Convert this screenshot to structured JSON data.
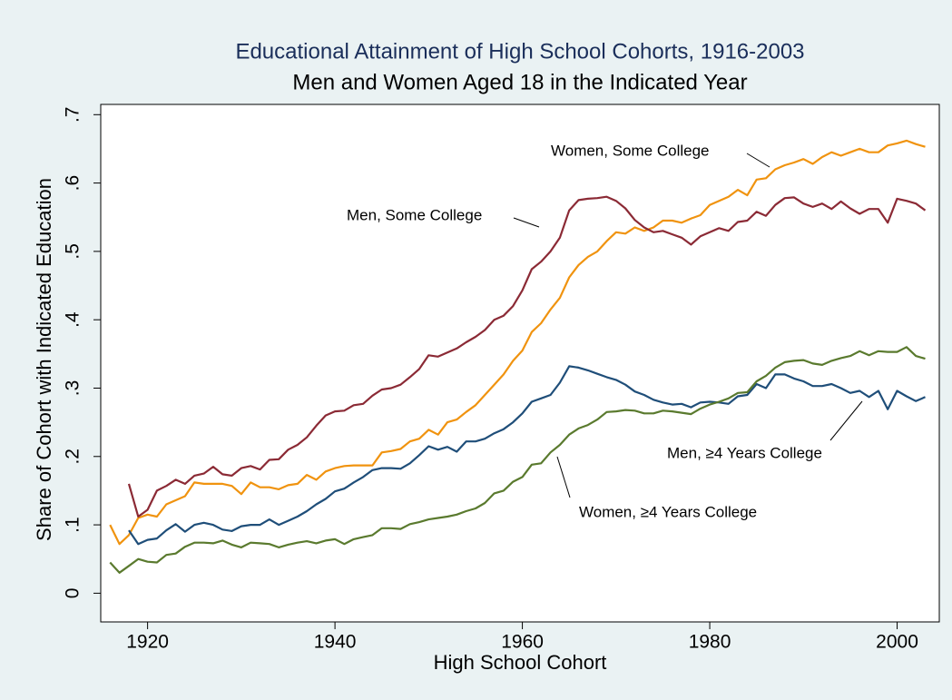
{
  "chart_data": {
    "type": "line",
    "title": "Educational Attainment of High School Cohorts, 1916-2003",
    "subtitle": "Men and Women Aged 18 in the Indicated Year",
    "x_label": "High School Cohort",
    "y_label": "Share of Cohort with Indicated Education",
    "x": [
      1916,
      1917,
      1918,
      1919,
      1920,
      1921,
      1922,
      1923,
      1924,
      1925,
      1926,
      1927,
      1928,
      1929,
      1930,
      1931,
      1932,
      1933,
      1934,
      1935,
      1936,
      1937,
      1938,
      1939,
      1940,
      1941,
      1942,
      1943,
      1944,
      1945,
      1946,
      1947,
      1948,
      1949,
      1950,
      1951,
      1952,
      1953,
      1954,
      1955,
      1956,
      1957,
      1958,
      1959,
      1960,
      1961,
      1962,
      1963,
      1964,
      1965,
      1966,
      1967,
      1968,
      1969,
      1970,
      1971,
      1972,
      1973,
      1974,
      1975,
      1976,
      1977,
      1978,
      1979,
      1980,
      1981,
      1982,
      1983,
      1984,
      1985,
      1986,
      1987,
      1988,
      1989,
      1990,
      1991,
      1992,
      1993,
      1994,
      1995,
      1996,
      1997,
      1998,
      1999,
      2000,
      2001,
      2002,
      2003
    ],
    "series": [
      {
        "name": "Women, Some College",
        "color": "#f0930f",
        "values": [
          0.1,
          0.072,
          0.085,
          0.11,
          0.115,
          0.112,
          0.13,
          0.136,
          0.142,
          0.162,
          0.16,
          0.16,
          0.16,
          0.157,
          0.145,
          0.162,
          0.155,
          0.155,
          0.152,
          0.158,
          0.16,
          0.173,
          0.166,
          0.178,
          0.183,
          0.186,
          0.187,
          0.187,
          0.187,
          0.206,
          0.208,
          0.211,
          0.222,
          0.226,
          0.239,
          0.232,
          0.25,
          0.254,
          0.265,
          0.275,
          0.29,
          0.305,
          0.32,
          0.34,
          0.355,
          0.382,
          0.395,
          0.415,
          0.432,
          0.462,
          0.48,
          0.492,
          0.5,
          0.515,
          0.528,
          0.526,
          0.535,
          0.53,
          0.535,
          0.545,
          0.545,
          0.542,
          0.548,
          0.553,
          0.568,
          0.574,
          0.58,
          0.59,
          0.582,
          0.605,
          0.607,
          0.62,
          0.626,
          0.63,
          0.635,
          0.628,
          0.638,
          0.645,
          0.64,
          0.645,
          0.65,
          0.645,
          0.645,
          0.655,
          0.658,
          0.662,
          0.657,
          0.653
        ]
      },
      {
        "name": "Men, Some College",
        "color": "#8b2a35",
        "values": [
          null,
          null,
          0.16,
          0.112,
          0.122,
          0.15,
          0.157,
          0.166,
          0.16,
          0.172,
          0.175,
          0.185,
          0.174,
          0.172,
          0.183,
          0.186,
          0.181,
          0.195,
          0.196,
          0.21,
          0.217,
          0.228,
          0.245,
          0.26,
          0.266,
          0.267,
          0.275,
          0.277,
          0.289,
          0.298,
          0.3,
          0.305,
          0.316,
          0.328,
          0.348,
          0.346,
          0.352,
          0.358,
          0.367,
          0.375,
          0.385,
          0.4,
          0.406,
          0.42,
          0.443,
          0.474,
          0.485,
          0.5,
          0.52,
          0.56,
          0.575,
          0.577,
          0.578,
          0.58,
          0.574,
          0.563,
          0.546,
          0.535,
          0.528,
          0.53,
          0.525,
          0.52,
          0.51,
          0.522,
          0.528,
          0.534,
          0.53,
          0.543,
          0.545,
          0.558,
          0.552,
          0.568,
          0.578,
          0.579,
          0.57,
          0.565,
          0.57,
          0.562,
          0.573,
          0.563,
          0.555,
          0.562,
          0.562,
          0.542,
          0.577,
          0.574,
          0.57,
          0.56
        ]
      },
      {
        "name": "Men, ≥4 Years College",
        "color": "#1f4e79",
        "values": [
          null,
          null,
          0.092,
          0.072,
          0.078,
          0.08,
          0.092,
          0.101,
          0.09,
          0.1,
          0.103,
          0.1,
          0.093,
          0.091,
          0.098,
          0.1,
          0.1,
          0.108,
          0.1,
          0.106,
          0.112,
          0.12,
          0.13,
          0.138,
          0.149,
          0.153,
          0.162,
          0.17,
          0.18,
          0.183,
          0.183,
          0.182,
          0.19,
          0.202,
          0.215,
          0.21,
          0.214,
          0.207,
          0.222,
          0.222,
          0.226,
          0.234,
          0.24,
          0.25,
          0.263,
          0.28,
          0.285,
          0.29,
          0.308,
          0.332,
          0.33,
          0.326,
          0.321,
          0.316,
          0.312,
          0.305,
          0.295,
          0.29,
          0.283,
          0.279,
          0.276,
          0.277,
          0.272,
          0.279,
          0.28,
          0.279,
          0.277,
          0.288,
          0.29,
          0.306,
          0.3,
          0.32,
          0.32,
          0.314,
          0.31,
          0.303,
          0.303,
          0.306,
          0.3,
          0.293,
          0.296,
          0.287,
          0.296,
          0.269,
          0.296,
          0.288,
          0.281,
          0.287
        ]
      },
      {
        "name": "Women, ≥4 Years College",
        "color": "#5a7a2e",
        "values": [
          0.045,
          0.03,
          0.04,
          0.05,
          0.046,
          0.045,
          0.056,
          0.058,
          0.068,
          0.074,
          0.074,
          0.073,
          0.077,
          0.071,
          0.067,
          0.074,
          0.073,
          0.072,
          0.067,
          0.071,
          0.074,
          0.076,
          0.073,
          0.077,
          0.079,
          0.072,
          0.079,
          0.082,
          0.085,
          0.095,
          0.095,
          0.094,
          0.101,
          0.104,
          0.108,
          0.11,
          0.112,
          0.115,
          0.12,
          0.124,
          0.132,
          0.146,
          0.15,
          0.163,
          0.17,
          0.188,
          0.19,
          0.206,
          0.217,
          0.232,
          0.241,
          0.246,
          0.254,
          0.265,
          0.266,
          0.268,
          0.267,
          0.263,
          0.263,
          0.267,
          0.266,
          0.264,
          0.262,
          0.27,
          0.276,
          0.28,
          0.285,
          0.293,
          0.294,
          0.31,
          0.318,
          0.33,
          0.338,
          0.34,
          0.341,
          0.336,
          0.334,
          0.34,
          0.344,
          0.347,
          0.354,
          0.348,
          0.354,
          0.353,
          0.353,
          0.36,
          0.347,
          0.343
        ]
      }
    ],
    "xlim": [
      1915,
      2004.5
    ],
    "xticks": [
      1920,
      1940,
      1960,
      1980,
      2000
    ],
    "ylim": [
      -0.042,
      0.715
    ],
    "yticks": [
      0,
      {
        "value": 0.1,
        "label": ".1"
      },
      {
        "value": 0.2,
        "label": ".2"
      },
      {
        "value": 0.3,
        "label": ".3"
      },
      {
        "value": 0.4,
        "label": ".4"
      },
      {
        "value": 0.5,
        "label": ".5"
      },
      {
        "value": 0.6,
        "label": ".6"
      },
      {
        "value": 0.7,
        "label": ".7"
      }
    ]
  }
}
